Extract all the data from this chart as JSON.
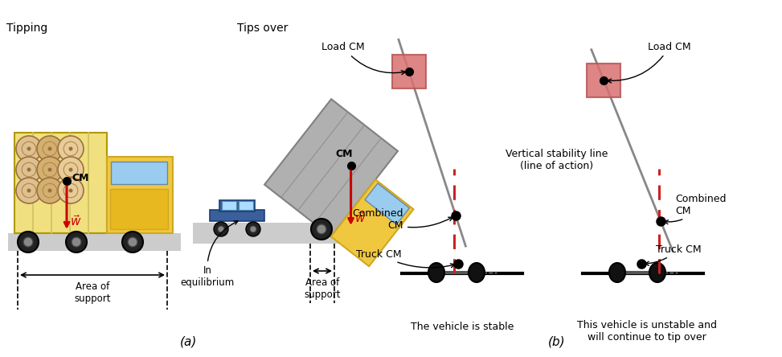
{
  "bg_color": "#ffffff",
  "fig_width": 9.73,
  "fig_height": 4.44,
  "dpi": 100,
  "label_a": "(a)",
  "label_b": "(b)",
  "tipping_label": "Tipping",
  "tips_over_label": "Tips over",
  "area_support_label": "Area of\nsupport",
  "in_equilibrium_label": "In\nequilibrium",
  "cm_label": "CM",
  "w_label": "$\\vec{w}$",
  "w_arrow_color": "#cc0000",
  "road_color": "#cccccc",
  "log_color_light": "#e8d0a0",
  "log_color_dark": "#c8a860",
  "log_ring_color": "#b09050",
  "truck_trailer_color": "#f0e080",
  "truck_trailer_stripe": "#d0c060",
  "truck_cab_color": "#f0c840",
  "truck_cab_dark": "#d0a820",
  "truck_window_color": "#99ccee",
  "wheel_outer": "#222222",
  "wheel_inner": "#888888",
  "axle_color": "#666666",
  "gray_truck_body": "#b0b0b0",
  "gray_truck_edge": "#808080",
  "car_body_color": "#3a5f9a",
  "car_roof_color": "#3a5f9a",
  "car_window": "#aaddff",
  "dashed_black": "#000000",
  "load_cm_box_color": "#d97070",
  "stability_line_color": "#888888",
  "dashed_red_color": "#cc2222",
  "stable_label": "The vehicle is stable",
  "unstable_label": "This vehicle is unstable and\nwill continue to tip over",
  "load_cm_label_left": "Load CM",
  "load_cm_label_right": "Load CM",
  "combined_cm_label_left": "Combined\nCM",
  "combined_cm_label_right": "Combined\nCM",
  "truck_cm_label_left": "Truck CM",
  "truck_cm_label_right": "Truck CM",
  "vertical_stability_label": "Vertical stability line\n(line of action)"
}
